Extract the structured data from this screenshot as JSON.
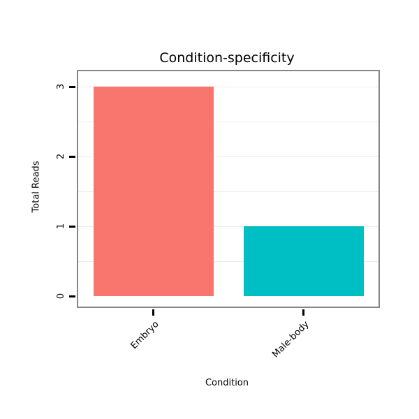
{
  "chart_data": {
    "type": "bar",
    "title": "Condition-specificity",
    "xlabel": "Condition",
    "ylabel": "Total Reads",
    "categories": [
      "Embryo",
      "Male-body"
    ],
    "values": [
      3,
      1
    ],
    "bar_colors": [
      "#F8766D",
      "#00BFC4"
    ],
    "ylim": [
      0,
      3
    ],
    "yticks": [
      0,
      1,
      2,
      3
    ],
    "gridlines": [
      0.5,
      1,
      1.5,
      2,
      2.5,
      3
    ],
    "legend": "none",
    "grid": "on",
    "background_color": "#ffffff",
    "plot_border_color": "#848484"
  }
}
